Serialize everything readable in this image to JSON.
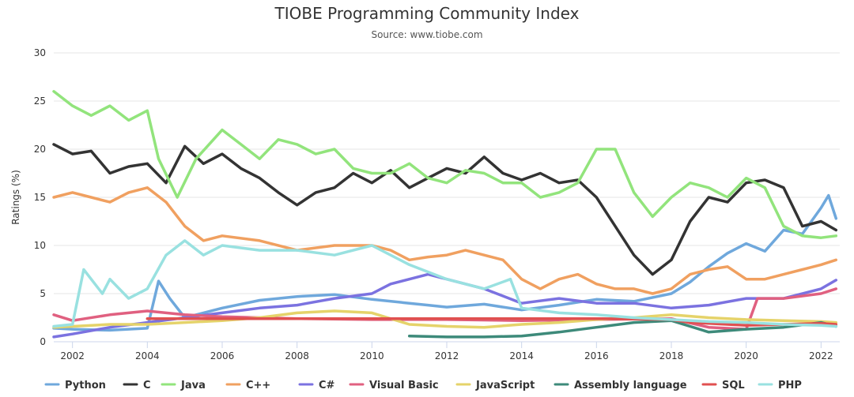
{
  "chart_data": {
    "type": "line",
    "title": "TIOBE Programming Community Index",
    "subtitle": "Source: www.tiobe.com",
    "xlabel": "",
    "ylabel": "Ratings (%)",
    "xlim": [
      2001.5,
      2022.5
    ],
    "ylim": [
      0,
      30
    ],
    "yticks": [
      0,
      5,
      10,
      15,
      20,
      25,
      30
    ],
    "xticks": [
      2002,
      2004,
      2006,
      2008,
      2010,
      2012,
      2014,
      2016,
      2018,
      2020,
      2022
    ],
    "grid": true,
    "legend": "bottom",
    "series": [
      {
        "name": "Python",
        "color": "#6fa8dc",
        "x": [
          2001.5,
          2002,
          2003,
          2004,
          2004.3,
          2004.6,
          2005,
          2006,
          2007,
          2008,
          2009,
          2010,
          2011,
          2011.5,
          2012,
          2013,
          2014,
          2015,
          2016,
          2017,
          2018,
          2018.5,
          2019,
          2019.5,
          2020,
          2020.5,
          2021,
          2021.5,
          2022,
          2022.2,
          2022.4
        ],
        "y": [
          1.4,
          1.3,
          1.2,
          1.4,
          6.3,
          4.5,
          2.5,
          3.5,
          4.3,
          4.7,
          4.9,
          4.4,
          4.0,
          3.8,
          3.6,
          3.9,
          3.3,
          3.8,
          4.4,
          4.2,
          5.0,
          6.2,
          7.8,
          9.2,
          10.2,
          9.4,
          11.6,
          11.2,
          13.9,
          15.2,
          12.8
        ]
      },
      {
        "name": "C",
        "color": "#333333",
        "x": [
          2001.5,
          2002,
          2002.5,
          2003,
          2003.5,
          2004,
          2004.5,
          2005,
          2005.5,
          2006,
          2006.5,
          2007,
          2007.5,
          2008,
          2008.5,
          2009,
          2009.5,
          2010,
          2010.5,
          2011,
          2011.5,
          2012,
          2012.5,
          2013,
          2013.5,
          2014,
          2014.5,
          2015,
          2015.5,
          2016,
          2016.5,
          2017,
          2017.5,
          2018,
          2018.5,
          2019,
          2019.5,
          2020,
          2020.5,
          2021,
          2021.5,
          2022,
          2022.4
        ],
        "y": [
          20.5,
          19.5,
          19.8,
          17.5,
          18.2,
          18.5,
          16.5,
          20.3,
          18.5,
          19.5,
          18.0,
          17.0,
          15.5,
          14.2,
          15.5,
          16.0,
          17.5,
          16.5,
          17.8,
          16.0,
          17.0,
          18.0,
          17.5,
          19.2,
          17.5,
          16.8,
          17.5,
          16.5,
          16.8,
          15.0,
          12.0,
          9.0,
          7.0,
          8.5,
          12.5,
          15.0,
          14.5,
          16.5,
          16.8,
          16.0,
          12.0,
          12.5,
          11.6
        ]
      },
      {
        "name": "Java",
        "color": "#92e47c",
        "x": [
          2001.5,
          2002,
          2002.5,
          2003,
          2003.5,
          2004,
          2004.3,
          2004.8,
          2005.3,
          2006,
          2006.5,
          2007,
          2007.5,
          2008,
          2008.5,
          2009,
          2009.5,
          2010,
          2010.5,
          2011,
          2011.5,
          2012,
          2012.5,
          2013,
          2013.5,
          2014,
          2014.5,
          2015,
          2015.5,
          2016,
          2016.5,
          2017,
          2017.5,
          2018,
          2018.5,
          2019,
          2019.5,
          2020,
          2020.5,
          2021,
          2021.5,
          2022,
          2022.4
        ],
        "y": [
          26.0,
          24.5,
          23.5,
          24.5,
          23.0,
          24.0,
          19.0,
          15.0,
          19.0,
          22.0,
          20.5,
          19.0,
          21.0,
          20.5,
          19.5,
          20.0,
          18.0,
          17.5,
          17.5,
          18.5,
          17.0,
          16.5,
          17.8,
          17.5,
          16.5,
          16.5,
          15.0,
          15.5,
          16.5,
          20.0,
          20.0,
          15.5,
          13.0,
          15.0,
          16.5,
          16.0,
          15.0,
          17.0,
          16.0,
          12.0,
          11.0,
          10.8,
          11.0
        ]
      },
      {
        "name": "C++",
        "color": "#f0a060",
        "x": [
          2001.5,
          2002,
          2002.5,
          2003,
          2003.5,
          2004,
          2004.5,
          2005,
          2005.5,
          2006,
          2007,
          2008,
          2009,
          2010,
          2010.5,
          2011,
          2011.5,
          2012,
          2012.5,
          2013,
          2013.5,
          2014,
          2014.5,
          2015,
          2015.5,
          2016,
          2016.5,
          2017,
          2017.5,
          2018,
          2018.5,
          2019,
          2019.5,
          2020,
          2020.5,
          2021,
          2021.5,
          2022,
          2022.4
        ],
        "y": [
          15.0,
          15.5,
          15.0,
          14.5,
          15.5,
          16.0,
          14.5,
          12.0,
          10.5,
          11.0,
          10.5,
          9.5,
          10.0,
          10.0,
          9.5,
          8.5,
          8.8,
          9.0,
          9.5,
          9.0,
          8.5,
          6.5,
          5.5,
          6.5,
          7.0,
          6.0,
          5.5,
          5.5,
          5.0,
          5.5,
          7.0,
          7.5,
          7.8,
          6.5,
          6.5,
          7.0,
          7.5,
          8.0,
          8.5
        ]
      },
      {
        "name": "C#",
        "color": "#7b72e0",
        "x": [
          2001.5,
          2002,
          2003,
          2004,
          2005,
          2006,
          2007,
          2008,
          2009,
          2010,
          2010.5,
          2011,
          2011.5,
          2012,
          2013,
          2014,
          2015,
          2016,
          2017,
          2018,
          2019,
          2020,
          2021,
          2022,
          2022.4
        ],
        "y": [
          0.5,
          0.8,
          1.5,
          2.0,
          2.5,
          3.0,
          3.5,
          3.8,
          4.5,
          5.0,
          6.0,
          6.5,
          7.0,
          6.5,
          5.5,
          4.0,
          4.5,
          4.0,
          4.0,
          3.5,
          3.8,
          4.5,
          4.5,
          5.5,
          6.4
        ]
      },
      {
        "name": "Visual Basic",
        "color": "#e06080",
        "x": [
          2001.5,
          2002,
          2003,
          2004,
          2005,
          2006,
          2008,
          2010,
          2012,
          2014,
          2016,
          2018,
          2019,
          2020,
          2020.3,
          2021,
          2022,
          2022.4
        ],
        "y": [
          2.8,
          2.2,
          2.8,
          3.2,
          2.8,
          2.6,
          2.4,
          2.3,
          2.3,
          2.2,
          2.3,
          2.4,
          1.5,
          1.3,
          4.5,
          4.5,
          5.0,
          5.5
        ]
      },
      {
        "name": "JavaScript",
        "color": "#e5d36a",
        "x": [
          2001.5,
          2002,
          2003,
          2004,
          2005,
          2006,
          2007,
          2008,
          2009,
          2010,
          2011,
          2012,
          2013,
          2014,
          2015,
          2016,
          2017,
          2018,
          2019,
          2020,
          2021,
          2022,
          2022.4
        ],
        "y": [
          1.5,
          1.6,
          1.8,
          1.8,
          2.0,
          2.2,
          2.5,
          3.0,
          3.2,
          3.0,
          1.8,
          1.6,
          1.5,
          1.8,
          2.0,
          2.3,
          2.5,
          2.8,
          2.5,
          2.3,
          2.2,
          2.1,
          2.0
        ]
      },
      {
        "name": "Assembly language",
        "color": "#3d8a7a",
        "x": [
          2011,
          2012,
          2013,
          2014,
          2015,
          2016,
          2017,
          2018,
          2019,
          2020,
          2021,
          2022,
          2022.4
        ],
        "y": [
          0.6,
          0.5,
          0.5,
          0.6,
          1.0,
          1.5,
          2.0,
          2.2,
          1.0,
          1.3,
          1.5,
          2.0,
          1.6
        ]
      },
      {
        "name": "SQL",
        "color": "#e05050",
        "x": [
          2004,
          2006,
          2008,
          2010,
          2012,
          2014,
          2016,
          2018,
          2018.5,
          2019,
          2020,
          2021,
          2022,
          2022.4
        ],
        "y": [
          2.4,
          2.4,
          2.4,
          2.4,
          2.4,
          2.4,
          2.4,
          2.3,
          2.0,
          1.9,
          1.7,
          1.8,
          1.9,
          1.8
        ]
      },
      {
        "name": "PHP",
        "color": "#99e1e0",
        "x": [
          2001.5,
          2002,
          2002.3,
          2002.8,
          2003,
          2003.5,
          2004,
          2004.5,
          2005,
          2005.5,
          2006,
          2007,
          2008,
          2009,
          2010,
          2011,
          2012,
          2013,
          2013.7,
          2014,
          2015,
          2016,
          2017,
          2018,
          2019,
          2020,
          2021,
          2022,
          2022.4
        ],
        "y": [
          1.6,
          1.8,
          7.5,
          5.0,
          6.5,
          4.5,
          5.5,
          9.0,
          10.5,
          9.0,
          10.0,
          9.5,
          9.5,
          9.0,
          10.0,
          8.0,
          6.5,
          5.5,
          6.5,
          3.5,
          3.0,
          2.8,
          2.5,
          2.3,
          2.1,
          2.0,
          1.8,
          1.7,
          1.6
        ]
      }
    ]
  }
}
